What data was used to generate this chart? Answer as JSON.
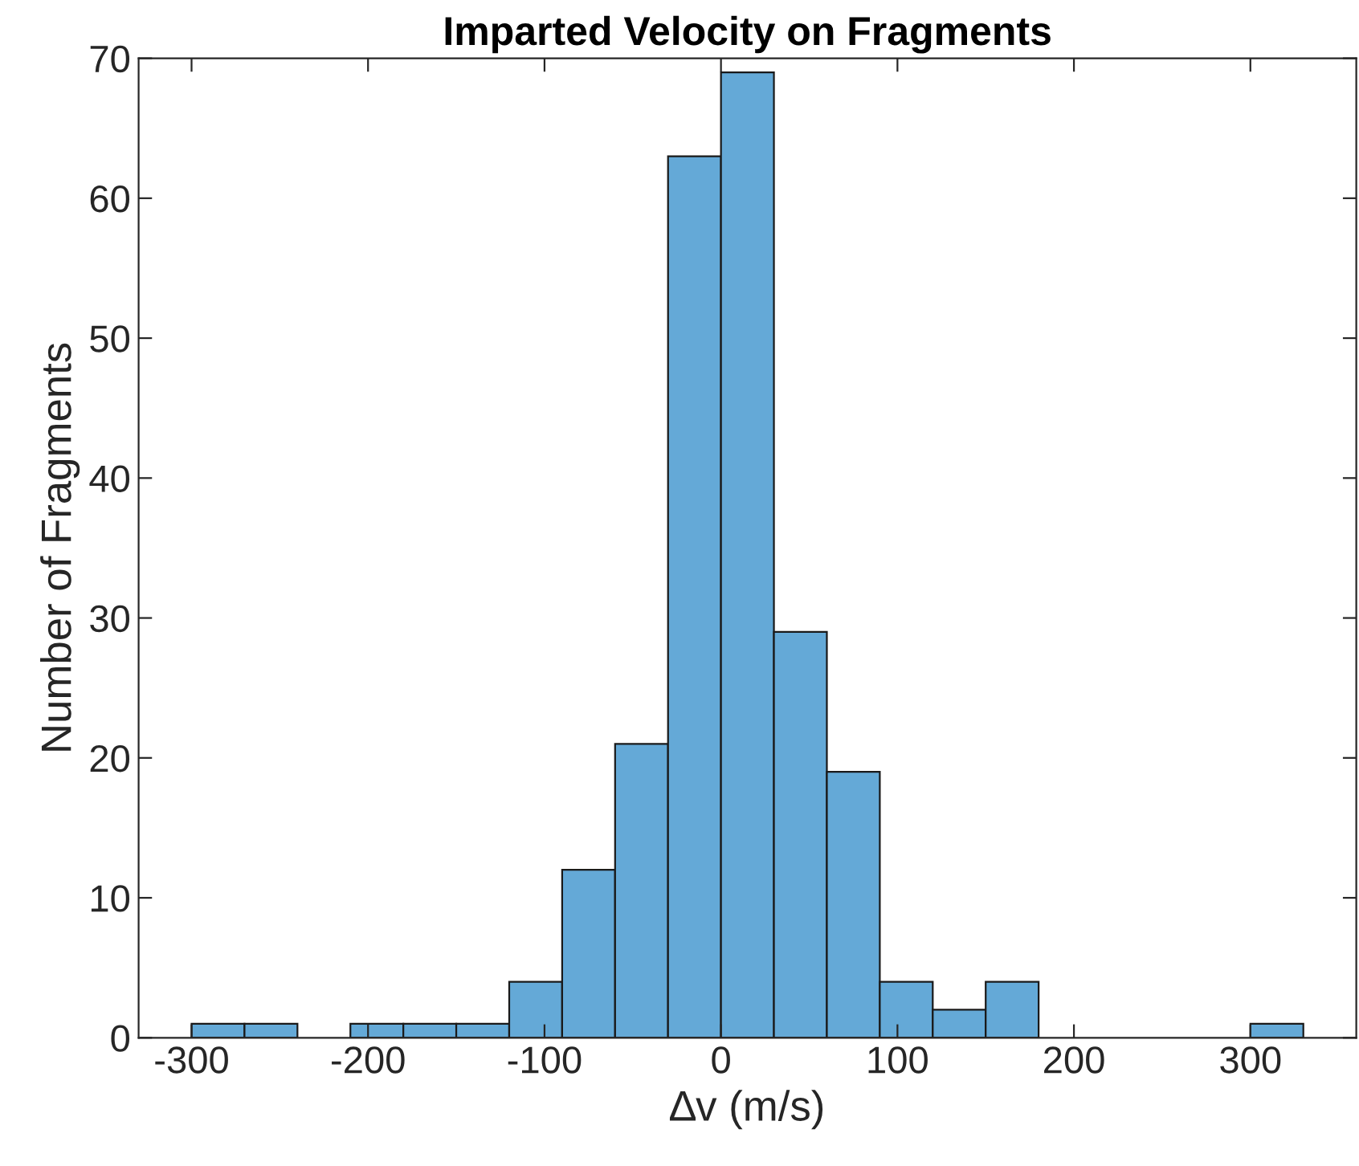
{
  "chart_data": {
    "type": "histogram",
    "title": "Imparted Velocity on Fragments",
    "xlabel": "∆v (m/s)",
    "ylabel": "Number of Fragments",
    "bins": [
      -300,
      -270,
      -240,
      -210,
      -180,
      -150,
      -120,
      -90,
      -60,
      -30,
      0,
      30,
      60,
      90,
      120,
      150,
      180,
      210,
      240,
      270,
      300,
      330
    ],
    "values": [
      1,
      1,
      0,
      1,
      1,
      1,
      4,
      12,
      21,
      63,
      69,
      29,
      19,
      4,
      2,
      4,
      0,
      0,
      0,
      0,
      1
    ],
    "color": "#64a9d7",
    "xlim": [
      -330,
      360
    ],
    "xticks": [
      -300,
      -200,
      -100,
      0,
      100,
      200,
      300
    ],
    "ylim": [
      0,
      70
    ],
    "yticks": [
      0,
      10,
      20,
      30,
      40,
      50,
      60,
      70
    ],
    "grid": false
  }
}
